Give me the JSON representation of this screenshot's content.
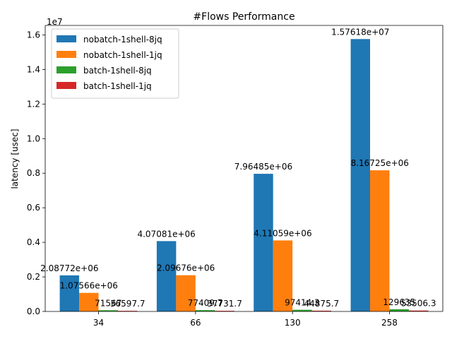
{
  "chart_data": {
    "type": "bar",
    "title": "#Flows Performance",
    "xlabel": "",
    "ylabel": "latency [usec]",
    "y_offset_label": "1e7",
    "categories": [
      "34",
      "66",
      "130",
      "258"
    ],
    "ylim": [
      0,
      16549890
    ],
    "yticks": [
      0,
      2000000,
      4000000,
      6000000,
      8000000,
      10000000,
      12000000,
      14000000,
      16000000
    ],
    "ytick_labels": [
      "0.0",
      "0.2",
      "0.4",
      "0.6",
      "0.8",
      "1.0",
      "1.2",
      "1.4",
      "1.6"
    ],
    "grid": false,
    "legend_position": "top-left",
    "series": [
      {
        "name": "nobatch-1shell-8jq",
        "color": "#1f77b4",
        "values": [
          2087720,
          4070810,
          7964850,
          15761800
        ],
        "labels": [
          "2.08772e+06",
          "4.07081e+06",
          "7.96485e+06",
          "1.57618e+07"
        ]
      },
      {
        "name": "nobatch-1shell-1jq",
        "color": "#ff7f0e",
        "values": [
          1075660,
          2096760,
          4110590,
          8167250
        ],
        "labels": [
          "1.07566e+06",
          "2.09676e+06",
          "4.11059e+06",
          "8.16725e+06"
        ]
      },
      {
        "name": "batch-1shell-8jq",
        "color": "#2ca02c",
        "values": [
          71567,
          77409.7,
          97414.3,
          129635
        ],
        "labels": [
          "71567",
          "77409.7",
          "97414.3",
          "129635"
        ]
      },
      {
        "name": "batch-1shell-1jq",
        "color": "#d62728",
        "values": [
          36597.7,
          37731.7,
          44875.7,
          53506.3
        ],
        "labels": [
          "36597.7",
          "37731.7",
          "44875.7",
          "53506.3"
        ]
      }
    ]
  }
}
